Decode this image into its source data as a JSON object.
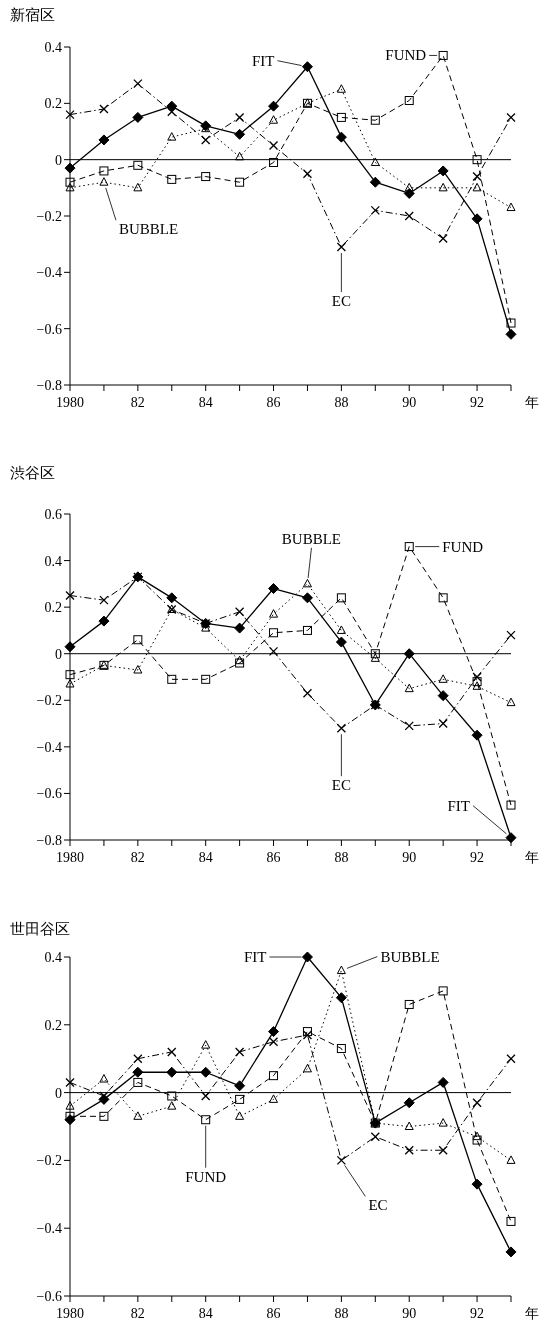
{
  "chart_data": [
    {
      "type": "line",
      "title": "新宿区",
      "xlabel": "年",
      "x": [
        1980,
        1981,
        1982,
        1983,
        1984,
        1985,
        1986,
        1987,
        1988,
        1989,
        1990,
        1991,
        1992,
        1993
      ],
      "xlim": [
        1980,
        1993
      ],
      "xticks": [
        {
          "value": 1980,
          "label": "1980"
        },
        {
          "value": 1981,
          "label": null
        },
        {
          "value": 1982,
          "label": "82"
        },
        {
          "value": 1983,
          "label": null
        },
        {
          "value": 1984,
          "label": "84"
        },
        {
          "value": 1985,
          "label": null
        },
        {
          "value": 1986,
          "label": "86"
        },
        {
          "value": 1987,
          "label": null
        },
        {
          "value": 1988,
          "label": "88"
        },
        {
          "value": 1989,
          "label": null
        },
        {
          "value": 1990,
          "label": "90"
        },
        {
          "value": 1991,
          "label": null
        },
        {
          "value": 1992,
          "label": "92"
        },
        {
          "value": 1993,
          "label": null
        }
      ],
      "ylim": [
        -0.8,
        0.4
      ],
      "yticks": [
        {
          "value": 0.4,
          "label": "0.4"
        },
        {
          "value": 0.2,
          "label": "0.2"
        },
        {
          "value": 0,
          "label": "0"
        },
        {
          "value": -0.2,
          "label": "−0.2"
        },
        {
          "value": -0.4,
          "label": "−0.4"
        },
        {
          "value": -0.6,
          "label": "−0.6"
        },
        {
          "value": -0.8,
          "label": "−0.8"
        }
      ],
      "grid": false,
      "ref_lines": [
        {
          "axis": "y",
          "value": 0,
          "color": "#000000"
        }
      ],
      "series": [
        {
          "color": "#000000",
          "marker": "diamond",
          "line_style": "solid",
          "values": [
            -0.03,
            0.07,
            0.15,
            0.19,
            0.12,
            0.09,
            0.19,
            0.33,
            0.08,
            -0.08,
            -0.12,
            -0.04,
            -0.21,
            -0.62
          ]
        },
        {
          "color": "#000000",
          "marker": "square",
          "line_style": "dashed",
          "values": [
            -0.08,
            -0.04,
            -0.02,
            -0.07,
            -0.06,
            -0.08,
            -0.01,
            0.2,
            0.15,
            0.14,
            0.21,
            0.37,
            0.0,
            -0.58
          ]
        },
        {
          "color": "#000000",
          "marker": "triangle",
          "line_style": "dotted",
          "values": [
            -0.1,
            -0.08,
            -0.1,
            0.08,
            0.11,
            0.01,
            0.14,
            0.2,
            0.25,
            -0.01,
            -0.1,
            -0.1,
            -0.1,
            -0.17
          ]
        },
        {
          "color": "#000000",
          "marker": "cross",
          "line_style": "dashdot",
          "values": [
            0.16,
            0.18,
            0.27,
            0.17,
            0.07,
            0.15,
            0.05,
            -0.05,
            -0.31,
            -0.18,
            -0.2,
            -0.28,
            -0.06,
            0.15
          ]
        }
      ],
      "annotations": [
        {
          "text": "FIT",
          "x": 1987,
          "y": 0.33
        },
        {
          "text": "FUND",
          "x": 1991,
          "y": 0.37
        },
        {
          "text": "BUBBLE",
          "x": 1981,
          "y": -0.08
        },
        {
          "text": "EC",
          "x": 1988,
          "y": -0.31
        }
      ]
    },
    {
      "type": "line",
      "title": "渋谷区",
      "xlabel": "年",
      "x": [
        1980,
        1981,
        1982,
        1983,
        1984,
        1985,
        1986,
        1987,
        1988,
        1989,
        1990,
        1991,
        1992,
        1993
      ],
      "xlim": [
        1980,
        1993
      ],
      "xticks": [
        {
          "value": 1980,
          "label": "1980"
        },
        {
          "value": 1981,
          "label": null
        },
        {
          "value": 1982,
          "label": "82"
        },
        {
          "value": 1983,
          "label": null
        },
        {
          "value": 1984,
          "label": "84"
        },
        {
          "value": 1985,
          "label": null
        },
        {
          "value": 1986,
          "label": "86"
        },
        {
          "value": 1987,
          "label": null
        },
        {
          "value": 1988,
          "label": "88"
        },
        {
          "value": 1989,
          "label": null
        },
        {
          "value": 1990,
          "label": "90"
        },
        {
          "value": 1991,
          "label": null
        },
        {
          "value": 1992,
          "label": "92"
        },
        {
          "value": 1993,
          "label": null
        }
      ],
      "ylim": [
        -0.8,
        0.6
      ],
      "yticks": [
        {
          "value": 0.6,
          "label": "0.6"
        },
        {
          "value": 0.4,
          "label": "0.4"
        },
        {
          "value": 0.2,
          "label": "0.2"
        },
        {
          "value": 0,
          "label": "0"
        },
        {
          "value": -0.2,
          "label": "−0.2"
        },
        {
          "value": -0.4,
          "label": "−0.4"
        },
        {
          "value": -0.6,
          "label": "−0.6"
        },
        {
          "value": -0.8,
          "label": "−0.8"
        }
      ],
      "grid": false,
      "ref_lines": [
        {
          "axis": "y",
          "value": 0,
          "color": "#000000"
        }
      ],
      "series": [
        {
          "color": "#000000",
          "marker": "diamond",
          "line_style": "solid",
          "values": [
            0.03,
            0.14,
            0.33,
            0.24,
            0.13,
            0.11,
            0.28,
            0.24,
            0.05,
            -0.22,
            0.0,
            -0.18,
            -0.35,
            -0.79
          ]
        },
        {
          "color": "#000000",
          "marker": "square",
          "line_style": "dashed",
          "values": [
            -0.09,
            -0.05,
            0.06,
            -0.11,
            -0.11,
            -0.04,
            0.09,
            0.1,
            0.24,
            0.0,
            0.46,
            0.24,
            -0.12,
            -0.65
          ]
        },
        {
          "color": "#000000",
          "marker": "triangle",
          "line_style": "dotted",
          "values": [
            -0.13,
            -0.05,
            -0.07,
            0.19,
            0.11,
            -0.03,
            0.17,
            0.3,
            0.1,
            -0.02,
            -0.15,
            -0.11,
            -0.14,
            -0.21
          ]
        },
        {
          "color": "#000000",
          "marker": "cross",
          "line_style": "dashdot",
          "values": [
            0.25,
            0.23,
            0.33,
            0.19,
            0.13,
            0.18,
            0.01,
            -0.17,
            -0.32,
            -0.22,
            -0.31,
            -0.3,
            -0.1,
            0.08
          ]
        }
      ],
      "annotations": [
        {
          "text": "BUBBLE",
          "x": 1987,
          "y": 0.3
        },
        {
          "text": "FUND",
          "x": 1990,
          "y": 0.46
        },
        {
          "text": "EC",
          "x": 1988,
          "y": -0.32
        },
        {
          "text": "FIT",
          "x": 1993,
          "y": -0.79
        }
      ]
    },
    {
      "type": "line",
      "title": "世田谷区",
      "xlabel": "年",
      "x": [
        1980,
        1981,
        1982,
        1983,
        1984,
        1985,
        1986,
        1987,
        1988,
        1989,
        1990,
        1991,
        1992,
        1993
      ],
      "xlim": [
        1980,
        1993
      ],
      "xticks": [
        {
          "value": 1980,
          "label": "1980"
        },
        {
          "value": 1981,
          "label": null
        },
        {
          "value": 1982,
          "label": "82"
        },
        {
          "value": 1983,
          "label": null
        },
        {
          "value": 1984,
          "label": "84"
        },
        {
          "value": 1985,
          "label": null
        },
        {
          "value": 1986,
          "label": "86"
        },
        {
          "value": 1987,
          "label": null
        },
        {
          "value": 1988,
          "label": "88"
        },
        {
          "value": 1989,
          "label": null
        },
        {
          "value": 1990,
          "label": "90"
        },
        {
          "value": 1991,
          "label": null
        },
        {
          "value": 1992,
          "label": "92"
        },
        {
          "value": 1993,
          "label": null
        }
      ],
      "ylim": [
        -0.6,
        0.4
      ],
      "yticks": [
        {
          "value": 0.4,
          "label": "0.4"
        },
        {
          "value": 0.2,
          "label": "0.2"
        },
        {
          "value": 0,
          "label": "0"
        },
        {
          "value": -0.2,
          "label": "−0.2"
        },
        {
          "value": -0.4,
          "label": "−0.4"
        },
        {
          "value": -0.6,
          "label": "−0.6"
        }
      ],
      "grid": false,
      "ref_lines": [
        {
          "axis": "y",
          "value": 0,
          "color": "#000000"
        }
      ],
      "series": [
        {
          "color": "#000000",
          "marker": "diamond",
          "line_style": "solid",
          "values": [
            -0.08,
            -0.02,
            0.06,
            0.06,
            0.06,
            0.02,
            0.18,
            0.4,
            0.28,
            -0.09,
            -0.03,
            0.03,
            -0.27,
            -0.47
          ]
        },
        {
          "color": "#000000",
          "marker": "square",
          "line_style": "dashed",
          "values": [
            -0.07,
            -0.07,
            0.03,
            -0.01,
            -0.08,
            -0.02,
            0.05,
            0.18,
            0.13,
            -0.09,
            0.26,
            0.3,
            -0.14,
            -0.38
          ]
        },
        {
          "color": "#000000",
          "marker": "triangle",
          "line_style": "dotted",
          "values": [
            -0.04,
            0.04,
            -0.07,
            -0.04,
            0.14,
            -0.07,
            -0.02,
            0.07,
            0.36,
            -0.09,
            -0.1,
            -0.09,
            -0.13,
            -0.2
          ]
        },
        {
          "color": "#000000",
          "marker": "cross",
          "line_style": "dashdot",
          "values": [
            0.03,
            -0.01,
            0.1,
            0.12,
            -0.01,
            0.12,
            0.15,
            0.17,
            -0.2,
            -0.13,
            -0.17,
            -0.17,
            -0.03,
            0.1
          ]
        }
      ],
      "annotations": [
        {
          "text": "FIT",
          "x": 1987,
          "y": 0.4
        },
        {
          "text": "BUBBLE",
          "x": 1988,
          "y": 0.36
        },
        {
          "text": "FUND",
          "x": 1984,
          "y": -0.08
        },
        {
          "text": "EC",
          "x": 1988,
          "y": -0.2
        }
      ]
    }
  ]
}
